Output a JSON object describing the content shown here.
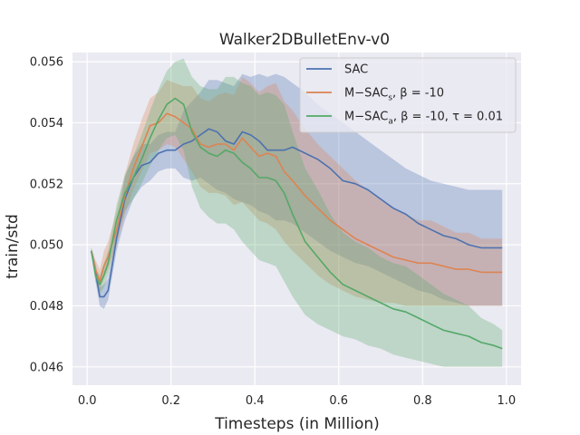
{
  "chart_data": {
    "type": "line",
    "title": "Walker2DBulletEnv-v0",
    "xlabel": "Timesteps (in Million)",
    "ylabel": "train/std",
    "xlim": [
      -0.035,
      1.035
    ],
    "ylim": [
      0.0454,
      0.0563
    ],
    "xticks": [
      0.0,
      0.2,
      0.4,
      0.6,
      0.8,
      1.0
    ],
    "xtick_labels": [
      "0.0",
      "0.2",
      "0.4",
      "0.6",
      "0.8",
      "1.0"
    ],
    "yticks": [
      0.046,
      0.048,
      0.05,
      0.052,
      0.054,
      0.056
    ],
    "ytick_labels": [
      "0.046",
      "0.048",
      "0.050",
      "0.052",
      "0.054",
      "0.056"
    ],
    "grid": true,
    "legend_position": "top-right",
    "background": "#eaeaf2",
    "series": [
      {
        "name": "SAC",
        "legend": {
          "base": "SAC",
          "sub": "",
          "rest": ""
        },
        "color": "#4c72b0",
        "x": [
          0.01,
          0.02,
          0.03,
          0.04,
          0.05,
          0.07,
          0.09,
          0.11,
          0.13,
          0.15,
          0.17,
          0.19,
          0.21,
          0.23,
          0.25,
          0.27,
          0.29,
          0.31,
          0.33,
          0.35,
          0.37,
          0.39,
          0.41,
          0.43,
          0.45,
          0.47,
          0.49,
          0.52,
          0.55,
          0.58,
          0.61,
          0.64,
          0.67,
          0.7,
          0.73,
          0.76,
          0.79,
          0.82,
          0.85,
          0.88,
          0.91,
          0.94,
          0.97,
          0.99
        ],
        "y": [
          0.0498,
          0.0491,
          0.0483,
          0.0483,
          0.0485,
          0.0502,
          0.0515,
          0.0522,
          0.0526,
          0.0527,
          0.053,
          0.0531,
          0.0531,
          0.0533,
          0.0534,
          0.0536,
          0.0538,
          0.0537,
          0.0534,
          0.0533,
          0.0537,
          0.0536,
          0.0534,
          0.0531,
          0.0531,
          0.0531,
          0.0532,
          0.053,
          0.0528,
          0.0525,
          0.0521,
          0.052,
          0.0518,
          0.0515,
          0.0512,
          0.051,
          0.0507,
          0.0505,
          0.0503,
          0.0502,
          0.05,
          0.0499,
          0.0499,
          0.0499
        ],
        "lower": [
          0.0497,
          0.0488,
          0.048,
          0.0479,
          0.0482,
          0.0498,
          0.0508,
          0.0515,
          0.0519,
          0.0521,
          0.0524,
          0.0525,
          0.0525,
          0.0522,
          0.0521,
          0.0522,
          0.052,
          0.0518,
          0.0517,
          0.0515,
          0.0514,
          0.0513,
          0.0511,
          0.051,
          0.0508,
          0.0508,
          0.0507,
          0.0504,
          0.0501,
          0.0498,
          0.0496,
          0.0494,
          0.0493,
          0.0491,
          0.0489,
          0.0487,
          0.0485,
          0.0484,
          0.0482,
          0.0481,
          0.048,
          0.048,
          0.048,
          0.048
        ],
        "upper": [
          0.0499,
          0.0494,
          0.0486,
          0.0487,
          0.0489,
          0.0506,
          0.0522,
          0.0529,
          0.0533,
          0.0533,
          0.0536,
          0.0537,
          0.0537,
          0.0544,
          0.0547,
          0.055,
          0.0554,
          0.0554,
          0.0553,
          0.0552,
          0.0556,
          0.0555,
          0.0556,
          0.0555,
          0.0556,
          0.0555,
          0.0553,
          0.055,
          0.0546,
          0.0543,
          0.054,
          0.0537,
          0.0534,
          0.0531,
          0.0528,
          0.0525,
          0.0523,
          0.0521,
          0.052,
          0.0519,
          0.0518,
          0.0518,
          0.0518,
          0.0518
        ]
      },
      {
        "name": "M-SACs, β = -10",
        "legend": {
          "base": "M−SAC",
          "sub": "s",
          "rest": ", β = -10"
        },
        "color": "#dd8452",
        "x": [
          0.01,
          0.02,
          0.03,
          0.04,
          0.05,
          0.07,
          0.09,
          0.11,
          0.13,
          0.15,
          0.17,
          0.19,
          0.21,
          0.23,
          0.25,
          0.27,
          0.29,
          0.31,
          0.33,
          0.35,
          0.37,
          0.39,
          0.41,
          0.43,
          0.45,
          0.47,
          0.49,
          0.52,
          0.55,
          0.58,
          0.61,
          0.64,
          0.67,
          0.7,
          0.73,
          0.76,
          0.79,
          0.82,
          0.85,
          0.88,
          0.91,
          0.94,
          0.97,
          0.99
        ],
        "y": [
          0.0498,
          0.0492,
          0.0488,
          0.0493,
          0.0496,
          0.0505,
          0.0516,
          0.0525,
          0.0532,
          0.0539,
          0.054,
          0.0543,
          0.0542,
          0.054,
          0.0538,
          0.0533,
          0.0532,
          0.0533,
          0.0533,
          0.0531,
          0.0535,
          0.0532,
          0.0529,
          0.053,
          0.0529,
          0.0524,
          0.0521,
          0.0516,
          0.0512,
          0.0508,
          0.0505,
          0.0502,
          0.05,
          0.0498,
          0.0496,
          0.0495,
          0.0494,
          0.0494,
          0.0493,
          0.0492,
          0.0492,
          0.0491,
          0.0491,
          0.0491
        ],
        "lower": [
          0.0497,
          0.049,
          0.0485,
          0.0489,
          0.0492,
          0.05,
          0.051,
          0.0518,
          0.0524,
          0.053,
          0.0531,
          0.0533,
          0.0532,
          0.0528,
          0.0524,
          0.0519,
          0.0517,
          0.0517,
          0.0516,
          0.0513,
          0.0514,
          0.0511,
          0.0508,
          0.0507,
          0.0505,
          0.0501,
          0.0498,
          0.0494,
          0.049,
          0.0487,
          0.0485,
          0.0483,
          0.0482,
          0.0481,
          0.0481,
          0.048,
          0.048,
          0.048,
          0.048,
          0.048,
          0.048,
          0.048,
          0.048,
          0.048
        ],
        "upper": [
          0.0499,
          0.0495,
          0.0492,
          0.0498,
          0.0501,
          0.0511,
          0.0523,
          0.0533,
          0.0541,
          0.0548,
          0.055,
          0.0554,
          0.0553,
          0.0552,
          0.0552,
          0.0548,
          0.0547,
          0.0549,
          0.055,
          0.0549,
          0.0555,
          0.0553,
          0.055,
          0.0552,
          0.0553,
          0.0547,
          0.0544,
          0.0538,
          0.0533,
          0.0529,
          0.0525,
          0.0521,
          0.0518,
          0.0515,
          0.0512,
          0.051,
          0.0508,
          0.0508,
          0.0506,
          0.0504,
          0.0504,
          0.0502,
          0.0502,
          0.0502
        ]
      },
      {
        "name": "M-SACa, β = -10, τ = 0.01",
        "legend": {
          "base": "M−SAC",
          "sub": "a",
          "rest": ", β = -10, τ = 0.01"
        },
        "color": "#55a868",
        "x": [
          0.01,
          0.02,
          0.03,
          0.04,
          0.05,
          0.07,
          0.09,
          0.11,
          0.13,
          0.15,
          0.17,
          0.19,
          0.21,
          0.23,
          0.25,
          0.27,
          0.29,
          0.31,
          0.33,
          0.35,
          0.37,
          0.39,
          0.41,
          0.43,
          0.45,
          0.47,
          0.49,
          0.52,
          0.55,
          0.58,
          0.61,
          0.64,
          0.67,
          0.7,
          0.73,
          0.76,
          0.79,
          0.82,
          0.85,
          0.88,
          0.91,
          0.94,
          0.97,
          0.99
        ],
        "y": [
          0.0498,
          0.049,
          0.0487,
          0.049,
          0.0494,
          0.0508,
          0.0517,
          0.0522,
          0.0528,
          0.0535,
          0.0541,
          0.0546,
          0.0548,
          0.0546,
          0.0537,
          0.0532,
          0.053,
          0.0529,
          0.0531,
          0.053,
          0.0527,
          0.0525,
          0.0522,
          0.0522,
          0.0521,
          0.0517,
          0.051,
          0.0501,
          0.0496,
          0.0491,
          0.0487,
          0.0485,
          0.0483,
          0.0481,
          0.0479,
          0.0478,
          0.0476,
          0.0474,
          0.0472,
          0.0471,
          0.047,
          0.0468,
          0.0467,
          0.0466
        ],
        "lower": [
          0.0497,
          0.0488,
          0.0484,
          0.0486,
          0.049,
          0.0503,
          0.0511,
          0.0515,
          0.052,
          0.0526,
          0.0531,
          0.0535,
          0.0536,
          0.0531,
          0.0519,
          0.0512,
          0.0509,
          0.0507,
          0.0507,
          0.0505,
          0.0501,
          0.0498,
          0.0495,
          0.0494,
          0.0493,
          0.0488,
          0.0483,
          0.0477,
          0.0474,
          0.0472,
          0.047,
          0.0469,
          0.0467,
          0.0466,
          0.0464,
          0.0463,
          0.0462,
          0.0461,
          0.046,
          0.046,
          0.046,
          0.046,
          0.046,
          0.046
        ],
        "upper": [
          0.0499,
          0.0492,
          0.049,
          0.0494,
          0.0498,
          0.0513,
          0.0523,
          0.0529,
          0.0536,
          0.0544,
          0.0551,
          0.0557,
          0.056,
          0.0561,
          0.0555,
          0.0552,
          0.0551,
          0.0551,
          0.0555,
          0.0555,
          0.0553,
          0.0552,
          0.0549,
          0.055,
          0.0549,
          0.0546,
          0.0537,
          0.0525,
          0.0518,
          0.051,
          0.0504,
          0.0501,
          0.0499,
          0.0496,
          0.0494,
          0.0493,
          0.049,
          0.0487,
          0.0484,
          0.0482,
          0.048,
          0.0476,
          0.0474,
          0.0472
        ]
      }
    ]
  }
}
